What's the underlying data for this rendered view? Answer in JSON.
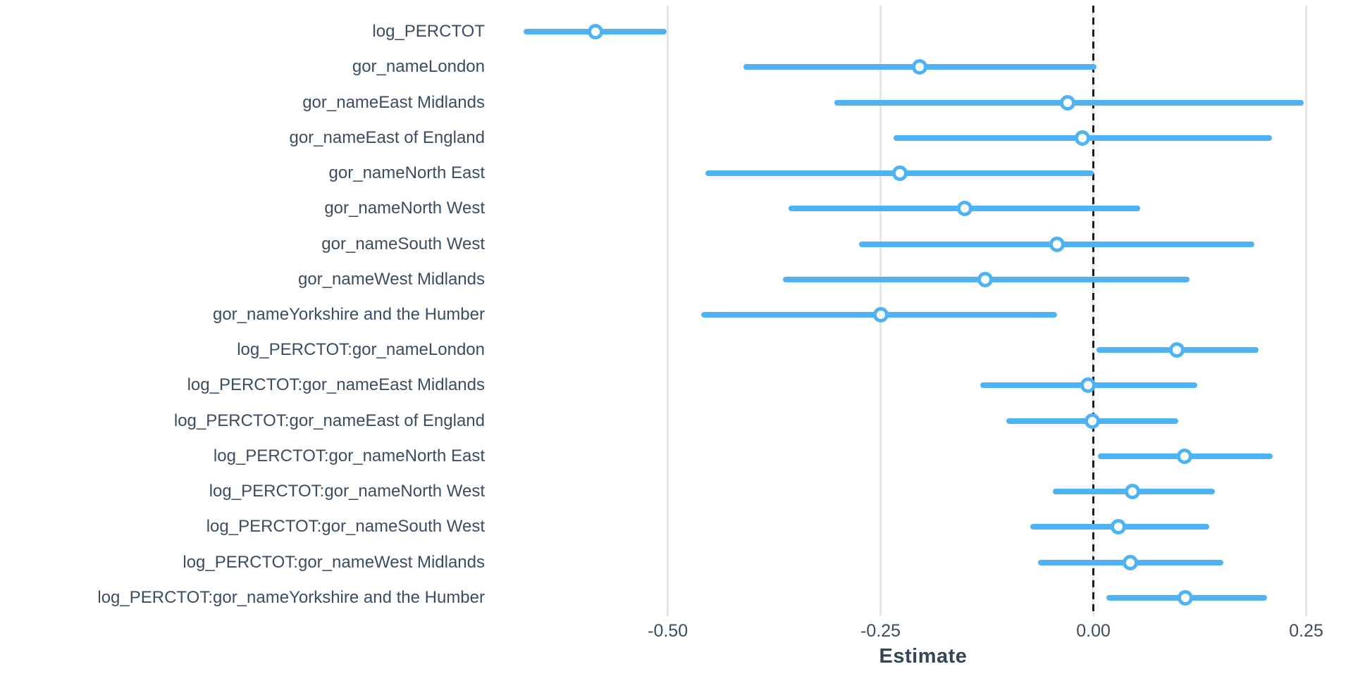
{
  "chart_data": {
    "type": "scatter",
    "subtype": "coefficient-dot-whisker-plot",
    "orientation": "horizontal",
    "title": "",
    "xlabel": "Estimate",
    "ylabel": "",
    "xlim": [
      -0.705,
      0.305
    ],
    "xticks": [
      -0.5,
      -0.25,
      0,
      0.25
    ],
    "xtick_labels": [
      "-0.50",
      "-0.25",
      "0.00",
      "0.25"
    ],
    "zero_line": 0,
    "grid": true,
    "legend": false,
    "terms": [
      {
        "label": "log_PERCTOT",
        "estimate": -0.585,
        "ci_low": -0.669,
        "ci_high": -0.501
      },
      {
        "label": "gor_nameLondon",
        "estimate": -0.204,
        "ci_low": -0.411,
        "ci_high": 0.004
      },
      {
        "label": "gor_nameEast Midlands",
        "estimate": -0.03,
        "ci_low": -0.304,
        "ci_high": 0.247
      },
      {
        "label": "gor_nameEast of England",
        "estimate": -0.013,
        "ci_low": -0.235,
        "ci_high": 0.21
      },
      {
        "label": "gor_nameNorth East",
        "estimate": -0.227,
        "ci_low": -0.456,
        "ci_high": 0.0
      },
      {
        "label": "gor_nameNorth West",
        "estimate": -0.151,
        "ci_low": -0.358,
        "ci_high": 0.055
      },
      {
        "label": "gor_nameSouth West",
        "estimate": -0.043,
        "ci_low": -0.275,
        "ci_high": 0.189
      },
      {
        "label": "gor_nameWest Midlands",
        "estimate": -0.127,
        "ci_low": -0.365,
        "ci_high": 0.113
      },
      {
        "label": "gor_nameYorkshire and the Humber",
        "estimate": -0.25,
        "ci_low": -0.461,
        "ci_high": -0.043
      },
      {
        "label": "log_PERCTOT:gor_nameLondon",
        "estimate": 0.098,
        "ci_low": 0.004,
        "ci_high": 0.194
      },
      {
        "label": "log_PERCTOT:gor_nameEast Midlands",
        "estimate": -0.006,
        "ci_low": -0.133,
        "ci_high": 0.122
      },
      {
        "label": "log_PERCTOT:gor_nameEast of England",
        "estimate": -0.001,
        "ci_low": -0.102,
        "ci_high": 0.1
      },
      {
        "label": "log_PERCTOT:gor_nameNorth East",
        "estimate": 0.107,
        "ci_low": 0.005,
        "ci_high": 0.211
      },
      {
        "label": "log_PERCTOT:gor_nameNorth West",
        "estimate": 0.046,
        "ci_low": -0.048,
        "ci_high": 0.143
      },
      {
        "label": "log_PERCTOT:gor_nameSouth West",
        "estimate": 0.029,
        "ci_low": -0.074,
        "ci_high": 0.136
      },
      {
        "label": "log_PERCTOT:gor_nameWest Midlands",
        "estimate": 0.043,
        "ci_low": -0.065,
        "ci_high": 0.153
      },
      {
        "label": "log_PERCTOT:gor_nameYorkshire and the Humber",
        "estimate": 0.108,
        "ci_low": 0.015,
        "ci_high": 0.204
      }
    ],
    "colors": {
      "accent": "#4db3f5",
      "label_text": "#3b4d61",
      "axis_title_text": "#334659",
      "gridline": "#e5e7e9",
      "zero_line": "#1e1e1e",
      "background": "#ffffff"
    }
  }
}
